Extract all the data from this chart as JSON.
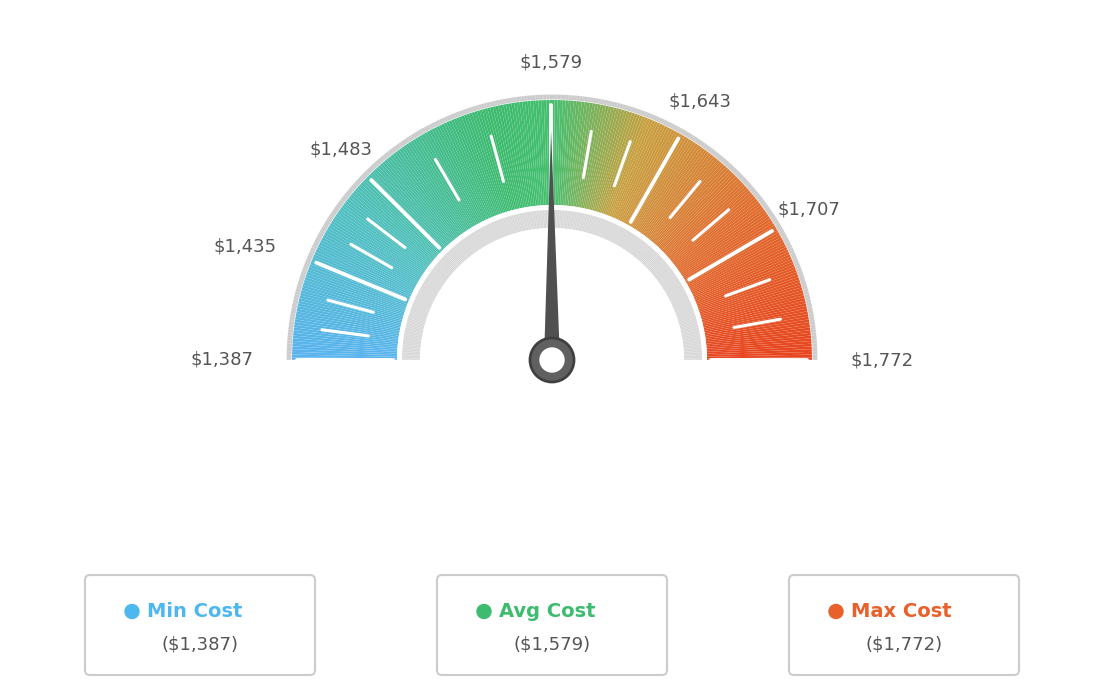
{
  "min_val": 1387,
  "avg_val": 1579,
  "max_val": 1772,
  "tick_label_values": [
    1387,
    1435,
    1483,
    1579,
    1643,
    1707,
    1772
  ],
  "tick_labels": [
    "$1,387",
    "$1,435",
    "$1,483",
    "$1,579",
    "$1,643",
    "$1,707",
    "$1,772"
  ],
  "needle_color": "#505050",
  "background_color": "#ffffff",
  "color_stops": [
    [
      0.0,
      "#5ab4f0"
    ],
    [
      0.2,
      "#50c0c0"
    ],
    [
      0.42,
      "#3dbb6e"
    ],
    [
      0.5,
      "#45c070"
    ],
    [
      0.62,
      "#c8a040"
    ],
    [
      0.78,
      "#e07030"
    ],
    [
      1.0,
      "#e84520"
    ]
  ],
  "legend_colors": [
    "#4db8f0",
    "#3dbb6e",
    "#e8602a"
  ],
  "legend_labels": [
    "Min Cost",
    "Avg Cost",
    "Max Cost"
  ],
  "legend_sublabels": [
    "($1,387)",
    "($1,579)",
    "($1,772)"
  ],
  "outer_arc_color": "#c8c8c8",
  "inner_arc_color": "#d0d0d0",
  "inner_fill_color": "#f0f0f0"
}
